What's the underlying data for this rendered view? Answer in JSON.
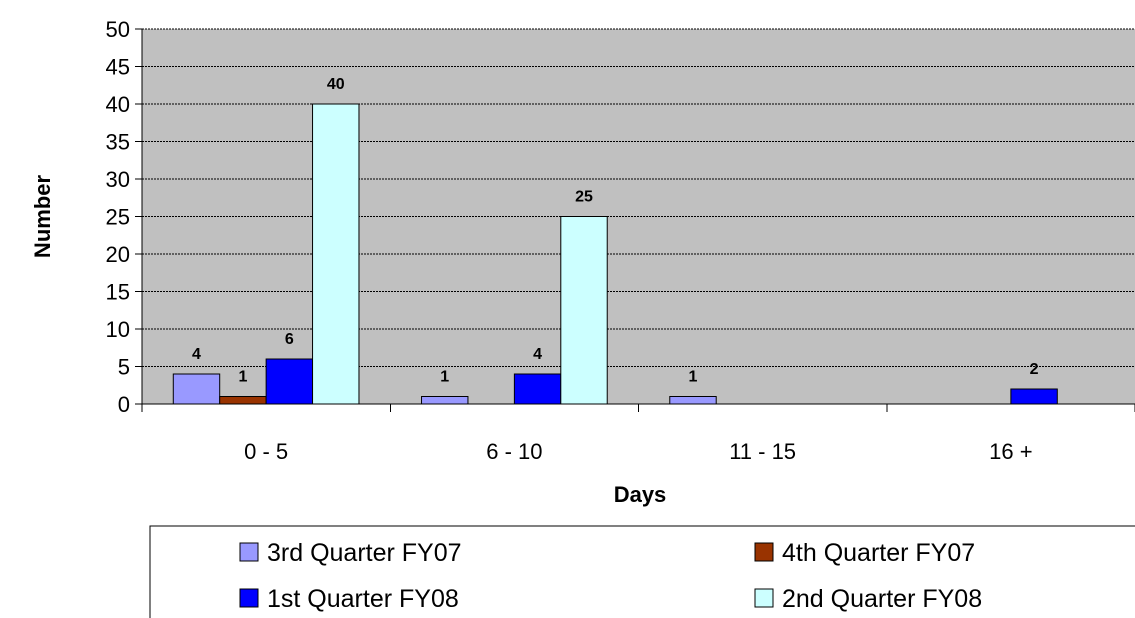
{
  "chart_data": {
    "type": "bar",
    "title": "",
    "xlabel": "Days",
    "ylabel": "Number",
    "categories": [
      "0 - 5",
      "6 - 10",
      "11 - 15",
      "16 +"
    ],
    "ylim": [
      0,
      50
    ],
    "yticks": [
      0,
      5,
      10,
      15,
      20,
      25,
      30,
      35,
      40,
      45,
      50
    ],
    "grid": true,
    "plot_background": "#c0c0c0",
    "legend_position": "bottom",
    "series": [
      {
        "name": "3rd Quarter FY07",
        "color": "#9999ff",
        "values": [
          4,
          1,
          1,
          0
        ],
        "labels": [
          "4",
          "1",
          "1",
          ""
        ]
      },
      {
        "name": "4th Quarter FY07",
        "color": "#993300",
        "values": [
          1,
          0,
          0,
          0
        ],
        "labels": [
          "1",
          "",
          "",
          ""
        ]
      },
      {
        "name": "1st Quarter FY08",
        "color": "#0000ff",
        "values": [
          6,
          4,
          0,
          2
        ],
        "labels": [
          "6",
          "4",
          "",
          "2"
        ]
      },
      {
        "name": "2nd Quarter FY08",
        "color": "#ccffff",
        "values": [
          40,
          25,
          0,
          0
        ],
        "labels": [
          "40",
          "25",
          "",
          ""
        ]
      }
    ]
  }
}
